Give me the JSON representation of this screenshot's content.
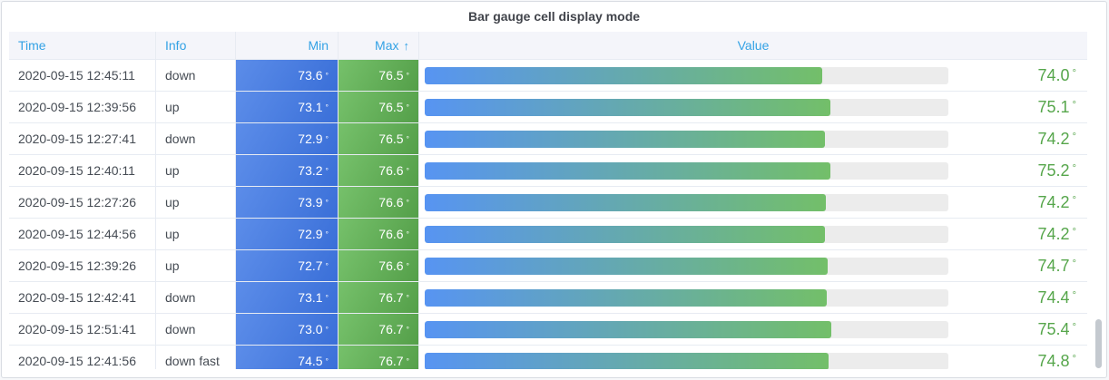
{
  "panel": {
    "title": "Bar gauge cell display mode"
  },
  "table": {
    "unit": "°",
    "columns": [
      {
        "label": "Time",
        "align": "left"
      },
      {
        "label": "Info",
        "align": "left"
      },
      {
        "label": "Min",
        "align": "right"
      },
      {
        "label": "Max",
        "align": "right",
        "sorted": "ascending",
        "sort_indicator": "↑"
      },
      {
        "label": "Value",
        "align": "center"
      }
    ],
    "rows": [
      {
        "time": "2020-09-15 12:45:11",
        "info": "down",
        "min": "73.6",
        "max": "76.5",
        "value": "74.0",
        "bar_percent": 75.9
      },
      {
        "time": "2020-09-15 12:39:56",
        "info": "up",
        "min": "73.1",
        "max": "76.5",
        "value": "75.1",
        "bar_percent": 77.5
      },
      {
        "time": "2020-09-15 12:27:41",
        "info": "down",
        "min": "72.9",
        "max": "76.5",
        "value": "74.2",
        "bar_percent": 76.4
      },
      {
        "time": "2020-09-15 12:40:11",
        "info": "up",
        "min": "73.2",
        "max": "76.6",
        "value": "75.2",
        "bar_percent": 77.5
      },
      {
        "time": "2020-09-15 12:27:26",
        "info": "up",
        "min": "73.9",
        "max": "76.6",
        "value": "74.2",
        "bar_percent": 76.6
      },
      {
        "time": "2020-09-15 12:44:56",
        "info": "up",
        "min": "72.9",
        "max": "76.6",
        "value": "74.2",
        "bar_percent": 76.4
      },
      {
        "time": "2020-09-15 12:39:26",
        "info": "up",
        "min": "72.7",
        "max": "76.6",
        "value": "74.7",
        "bar_percent": 77.0
      },
      {
        "time": "2020-09-15 12:42:41",
        "info": "down",
        "min": "73.1",
        "max": "76.7",
        "value": "74.4",
        "bar_percent": 76.8
      },
      {
        "time": "2020-09-15 12:51:41",
        "info": "down",
        "min": "73.0",
        "max": "76.7",
        "value": "75.4",
        "bar_percent": 77.6
      },
      {
        "time": "2020-09-15 12:41:56",
        "info": "down fast",
        "min": "74.5",
        "max": "76.7",
        "value": "74.8",
        "bar_percent": 77.1
      }
    ]
  },
  "chart_data": {
    "type": "table",
    "title": "Bar gauge cell display mode",
    "columns": [
      "Time",
      "Info",
      "Min",
      "Max",
      "Value"
    ],
    "unit": "°",
    "gauge": {
      "style": "gradient blue→green horizontal bar",
      "approx_range": [
        0,
        100
      ]
    },
    "rows": [
      [
        "2020-09-15 12:45:11",
        "down",
        73.6,
        76.5,
        74.0
      ],
      [
        "2020-09-15 12:39:56",
        "up",
        73.1,
        76.5,
        75.1
      ],
      [
        "2020-09-15 12:27:41",
        "down",
        72.9,
        76.5,
        74.2
      ],
      [
        "2020-09-15 12:40:11",
        "up",
        73.2,
        76.6,
        75.2
      ],
      [
        "2020-09-15 12:27:26",
        "up",
        73.9,
        76.6,
        74.2
      ],
      [
        "2020-09-15 12:44:56",
        "up",
        72.9,
        76.6,
        74.2
      ],
      [
        "2020-09-15 12:39:26",
        "up",
        72.7,
        76.6,
        74.7
      ],
      [
        "2020-09-15 12:42:41",
        "down",
        73.1,
        76.7,
        74.4
      ],
      [
        "2020-09-15 12:51:41",
        "down",
        73.0,
        76.7,
        75.4
      ],
      [
        "2020-09-15 12:41:56",
        "down fast",
        74.5,
        76.7,
        74.8
      ]
    ]
  },
  "colors": {
    "page_bg": "#F7F8FA",
    "panel_bg": "#FFFFFF",
    "panel_border": "#D8DCE2",
    "title_text": "#41444B",
    "header_bg": "#F4F5FA",
    "header_text": "#33A2E5",
    "row_text": "#464C54",
    "grid": "#E7EBF2",
    "min_cell_from": "#5C8DE9",
    "min_cell_to": "#3A6FD8",
    "max_cell_from": "#76C16B",
    "max_cell_to": "#549F49",
    "bar_from": "#5794F2",
    "bar_to": "#73BF69",
    "bar_track": "#ECECEC",
    "value_text": "#56A64B",
    "cell_text_white": "#FFFFFF",
    "scrollbar": "#C4C9CF"
  }
}
